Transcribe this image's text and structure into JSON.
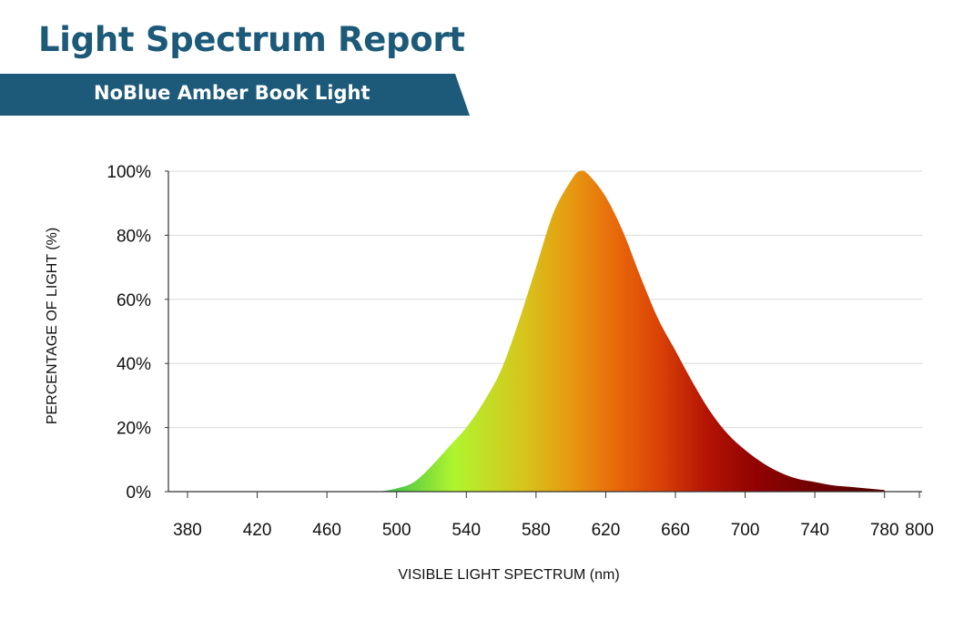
{
  "header": {
    "title": "Light Spectrum Report",
    "subtitle": "NoBlue Amber Book Light"
  },
  "colors": {
    "brand": "#1d5a7a",
    "gridline": "#d9d9d9",
    "axis": "#333333"
  },
  "chart_data": {
    "type": "area",
    "title": "",
    "xlabel": "VISIBLE LIGHT SPECTRUM (nm)",
    "ylabel": "PERCENTAGE OF LIGHT (%)",
    "xlim": [
      380,
      800
    ],
    "ylim": [
      0,
      100
    ],
    "x_ticks": [
      380,
      420,
      460,
      500,
      540,
      580,
      620,
      660,
      700,
      740,
      780,
      800
    ],
    "x_tick_labels": [
      "380",
      "420",
      "460",
      "500",
      "540",
      "580",
      "620",
      "660",
      "700",
      "740",
      "780",
      "800"
    ],
    "y_ticks": [
      0,
      20,
      40,
      60,
      80,
      100
    ],
    "y_tick_labels": [
      "0%",
      "20%",
      "40%",
      "60%",
      "80%",
      "100%"
    ],
    "grid": true,
    "fill": "wavelength-color gradient",
    "series": [
      {
        "x": [
          490,
          500,
          510,
          520,
          530,
          540,
          550,
          560,
          570,
          580,
          590,
          600,
          605,
          610,
          620,
          630,
          640,
          650,
          660,
          670,
          680,
          690,
          700,
          710,
          720,
          730,
          740,
          750,
          760,
          770,
          780
        ],
        "y": [
          0,
          1,
          3,
          8,
          14,
          20,
          28,
          38,
          53,
          70,
          87,
          97,
          100,
          99,
          92,
          81,
          67,
          54,
          44,
          34,
          25,
          18,
          13,
          9,
          6,
          4,
          3,
          2,
          1.5,
          1,
          0.5
        ]
      }
    ]
  }
}
